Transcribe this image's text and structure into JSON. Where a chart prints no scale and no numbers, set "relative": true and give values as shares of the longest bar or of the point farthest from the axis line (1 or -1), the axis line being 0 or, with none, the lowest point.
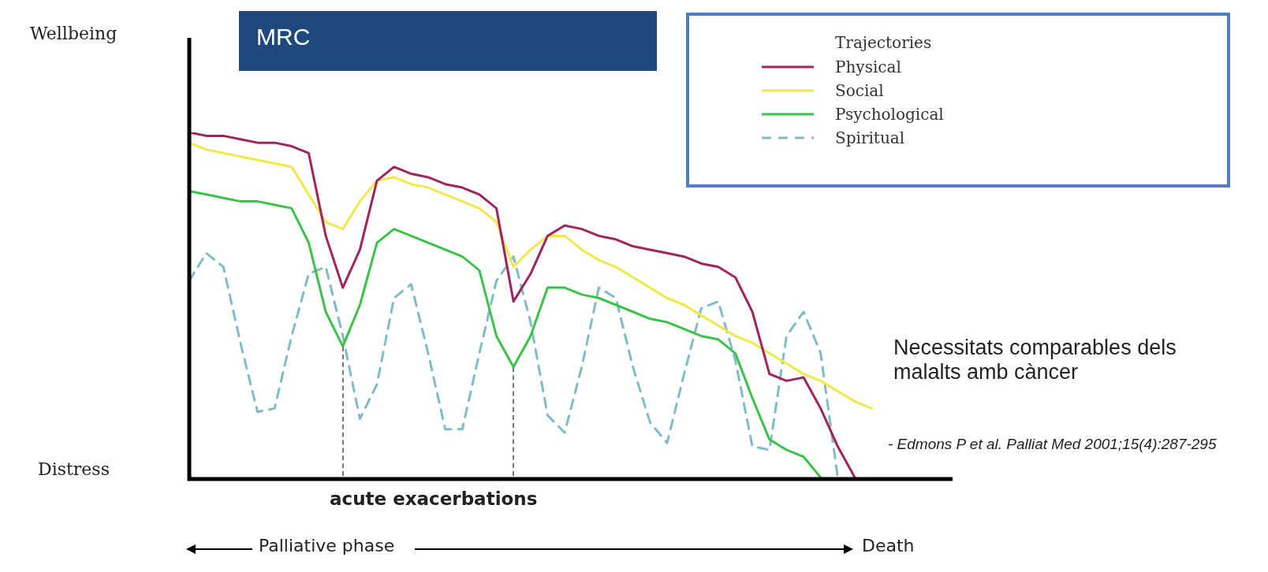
{
  "chart_data": {
    "type": "line",
    "title": "MRC",
    "xlabel": "acute exacerbations",
    "relative": true,
    "legend": "top right",
    "legend_title": "Trajectories",
    "categories": [
      null,
      null,
      null,
      null,
      null,
      null,
      null,
      null,
      null,
      null,
      null,
      null,
      null,
      null,
      null,
      null,
      null,
      null,
      null,
      null,
      null,
      null,
      null,
      null,
      null,
      null,
      null,
      null,
      null,
      null,
      null,
      null,
      null,
      null,
      null,
      null,
      null,
      null,
      null,
      null,
      null
    ],
    "series": [
      {
        "name": "Physical",
        "color": "#a0245e",
        "line_style": "solid",
        "values": [
          1.0,
          0.99,
          0.99,
          0.98,
          0.97,
          0.97,
          0.96,
          0.94,
          0.7,
          0.55,
          0.66,
          0.86,
          0.9,
          0.88,
          0.87,
          0.85,
          0.84,
          0.82,
          0.78,
          0.51,
          0.59,
          0.7,
          0.73,
          0.72,
          0.7,
          0.69,
          0.67,
          0.66,
          0.65,
          0.64,
          0.62,
          0.61,
          0.58,
          0.48,
          0.3,
          0.28,
          0.29,
          0.2,
          0.09,
          0,
          null
        ]
      },
      {
        "name": "Social",
        "color": "#f2e84a",
        "line_style": "solid",
        "values": [
          0.97,
          0.95,
          0.94,
          0.93,
          0.92,
          0.91,
          0.9,
          0.82,
          0.74,
          0.72,
          0.8,
          0.86,
          0.87,
          0.85,
          0.84,
          0.82,
          0.8,
          0.78,
          0.74,
          0.61,
          0.66,
          0.7,
          0.7,
          0.66,
          0.63,
          0.61,
          0.58,
          0.55,
          0.52,
          0.5,
          0.47,
          0.44,
          0.41,
          0.39,
          0.36,
          0.33,
          0.3,
          0.28,
          0.25,
          0.22,
          0.2
        ]
      },
      {
        "name": "Psychological",
        "color": "#3cc24a",
        "line_style": "solid",
        "values": [
          0.83,
          0.82,
          0.81,
          0.8,
          0.8,
          0.79,
          0.78,
          0.68,
          0.48,
          0.38,
          0.5,
          0.68,
          0.72,
          0.7,
          0.68,
          0.66,
          0.64,
          0.6,
          0.41,
          0.32,
          0.41,
          0.55,
          0.55,
          0.53,
          0.52,
          0.5,
          0.48,
          0.46,
          0.45,
          0.43,
          0.41,
          0.4,
          0.36,
          0.23,
          0.11,
          0.08,
          0.06,
          0,
          null,
          null,
          null
        ]
      },
      {
        "name": "Spiritual",
        "color": "#7fbcc8",
        "line_style": "dashed",
        "values": [
          0.57,
          0.65,
          0.61,
          0.39,
          0.19,
          0.2,
          0.41,
          0.59,
          0.61,
          0.41,
          0.17,
          0.27,
          0.52,
          0.56,
          0.36,
          0.14,
          0.14,
          0.36,
          0.57,
          0.64,
          0.45,
          0.18,
          0.13,
          0.32,
          0.55,
          0.52,
          0.32,
          0.16,
          0.1,
          0.3,
          0.49,
          0.51,
          0.34,
          0.09,
          0.08,
          0.41,
          0.48,
          0.36,
          0,
          null,
          null
        ]
      }
    ],
    "annotations": [
      "Wellbeing",
      "Distress",
      "Palliative phase",
      "Death",
      "Necessitats comparables dels malalts amb càncer",
      "- Edmons P et al. Palliat Med 2001;15(4):287-295"
    ]
  }
}
